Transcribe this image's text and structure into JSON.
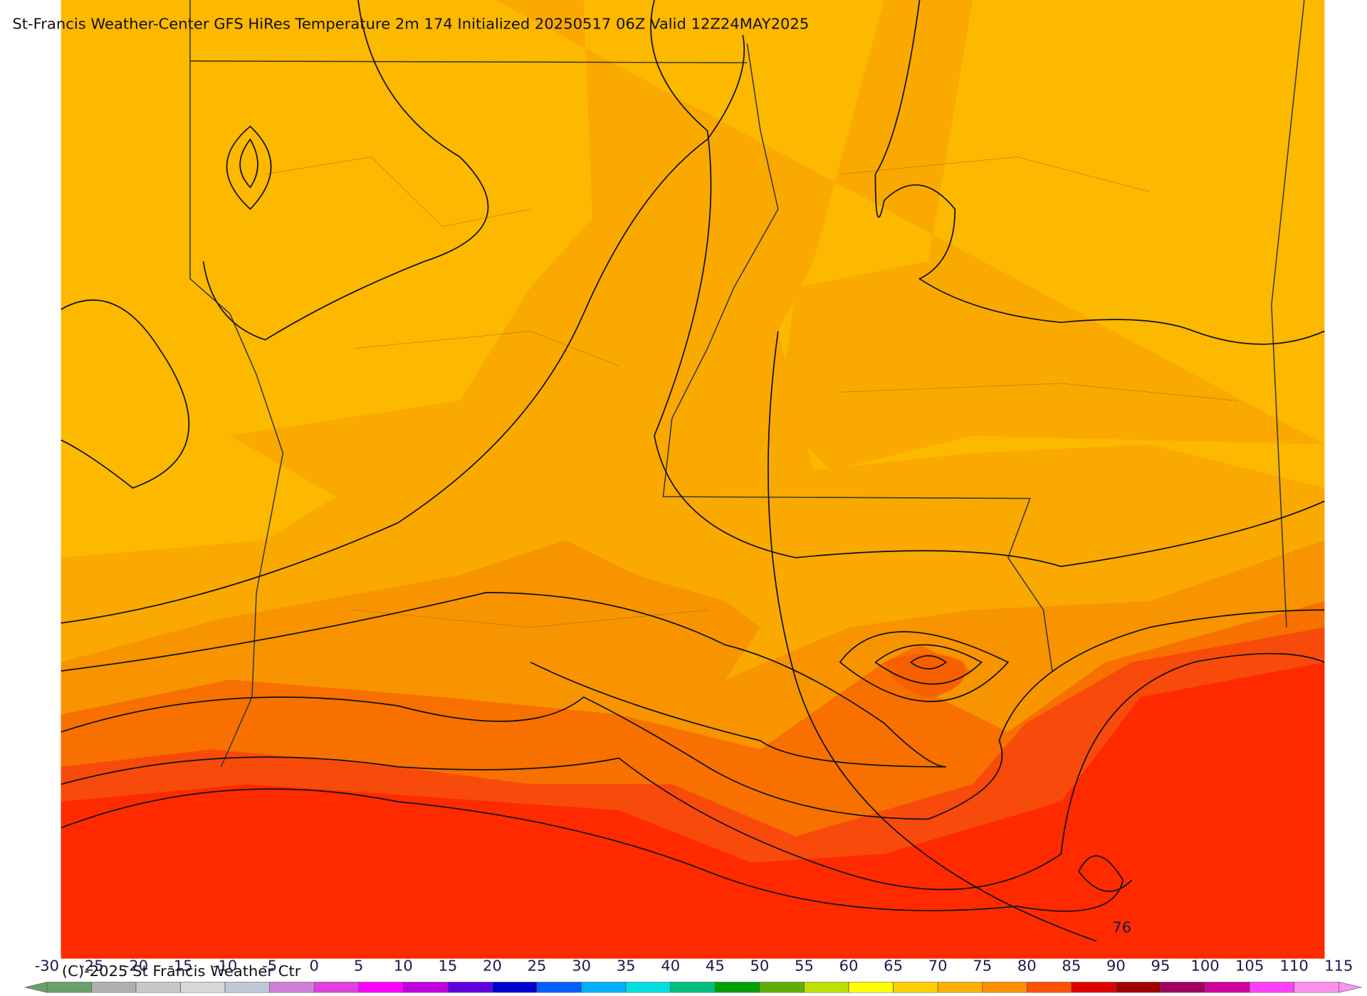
{
  "header": {
    "title": "St-Francis Weather-Center GFS HiRes Temperature 2m  174 Initialized 20250517 06Z Valid 12Z24MAY2025"
  },
  "map": {
    "contour_label": "76"
  },
  "footer": {
    "copyright": "(C)-2025 St Francis Weather Ctr"
  },
  "colorbar": {
    "ticks": [
      -30,
      -25,
      -20,
      -15,
      -10,
      -5,
      0,
      5,
      10,
      15,
      20,
      25,
      30,
      35,
      40,
      45,
      50,
      55,
      60,
      65,
      70,
      75,
      80,
      85,
      90,
      95,
      100,
      105,
      110,
      115
    ],
    "colors": [
      "#6aa06a",
      "#b0b0b0",
      "#c8c8c8",
      "#d8d8d8",
      "#c0c8d8",
      "#d080d8",
      "#e040e0",
      "#ff00ff",
      "#c000e0",
      "#6000e0",
      "#0000d0",
      "#0060ff",
      "#00b0ff",
      "#00e0e0",
      "#00c080",
      "#00a000",
      "#60b000",
      "#c0e000",
      "#ffff00",
      "#ffd000",
      "#ffb000",
      "#ff9000",
      "#ff5000",
      "#e00000",
      "#a00000",
      "#a00060",
      "#d000a0",
      "#ff40ff",
      "#ff90f0"
    ]
  }
}
